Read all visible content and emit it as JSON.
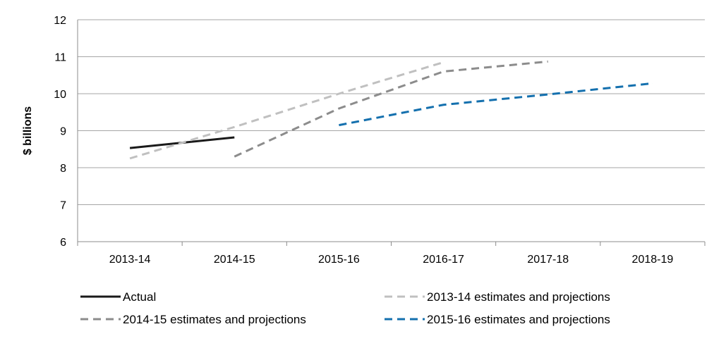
{
  "chart_data": {
    "type": "line",
    "title": "",
    "xlabel": "",
    "ylabel": "$ billions",
    "categories": [
      "2013-14",
      "2014-15",
      "2015-16",
      "2016-17",
      "2017-18",
      "2018-19"
    ],
    "ylim": [
      6,
      12
    ],
    "yticks": [
      "6",
      "7",
      "8",
      "9",
      "10",
      "11",
      "12"
    ],
    "grid": true,
    "legend_position": "bottom",
    "series": [
      {
        "name": "Actual",
        "color": "#1a1a1a",
        "style": "solid",
        "values": [
          8.53,
          8.82,
          null,
          null,
          null,
          null
        ]
      },
      {
        "name": "2013-14 estimates and projections",
        "color": "#c0c0c0",
        "style": "dashed",
        "values": [
          8.25,
          9.1,
          10.0,
          10.85,
          null,
          null
        ]
      },
      {
        "name": "2014-15 estimates and projections",
        "color": "#8c8c8c",
        "style": "dashed",
        "values": [
          null,
          8.3,
          9.6,
          10.6,
          10.87,
          null
        ]
      },
      {
        "name": "2015-16 estimates and projections",
        "color": "#1470ae",
        "style": "dashed",
        "values": [
          null,
          null,
          9.15,
          9.7,
          9.98,
          10.28
        ]
      }
    ]
  }
}
